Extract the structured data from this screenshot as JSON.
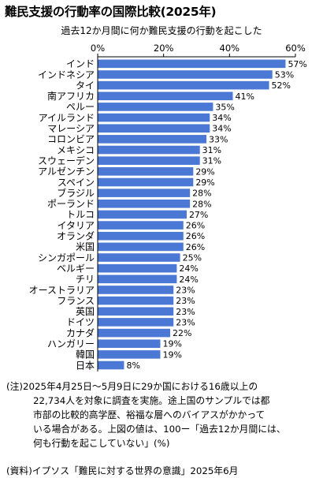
{
  "header": {
    "title": "難民支援の行動率の国際比較(2025年)"
  },
  "chart_data": {
    "type": "bar",
    "orientation": "horizontal",
    "title": "過去12か月間に何か難民支援の行動を起こした",
    "x_ticks": [
      "0%",
      "20%",
      "40%",
      "60%"
    ],
    "xlim": [
      0,
      60
    ],
    "bar_color": "#4a78d4",
    "categories": [
      "インド",
      "インドネシア",
      "タイ",
      "南アフリカ",
      "ペルー",
      "アイルランド",
      "マレーシア",
      "コロンビア",
      "メキシコ",
      "スウェーデン",
      "アルゼンチン",
      "スペイン",
      "ブラジル",
      "ポーランド",
      "トルコ",
      "イタリア",
      "オランダ",
      "米国",
      "シンガポール",
      "ベルギー",
      "チリ",
      "オーストラリア",
      "フランス",
      "英国",
      "ドイツ",
      "カナダ",
      "ハンガリー",
      "韓国",
      "日本"
    ],
    "values": [
      57,
      53,
      52,
      41,
      35,
      34,
      34,
      33,
      31,
      31,
      29,
      29,
      28,
      28,
      27,
      26,
      26,
      26,
      25,
      24,
      24,
      23,
      23,
      23,
      23,
      22,
      19,
      19,
      8
    ],
    "value_labels": [
      "57%",
      "53%",
      "52%",
      "41%",
      "35%",
      "34%",
      "34%",
      "33%",
      "31%",
      "31%",
      "29%",
      "29%",
      "28%",
      "28%",
      "27%",
      "26%",
      "26%",
      "26%",
      "25%",
      "24%",
      "24%",
      "23%",
      "23%",
      "23%",
      "23%",
      "22%",
      "19%",
      "19%",
      "8%"
    ]
  },
  "notes": {
    "note_lines": [
      "(注)2025年4月25日～5月9日に29か国における16歳以上の",
      "22,734人を対象に調査を実施。途上国のサンプルでは都",
      "市部の比較的高学歴、裕福な層へのバイアスがかかって",
      "いる場合がある。上図の値は、100ー「過去12か月間には、",
      "何も行動を起こしていない」(%)"
    ],
    "source": "(資料)イプソス「難民に対する世界の意識」2025年6月"
  }
}
